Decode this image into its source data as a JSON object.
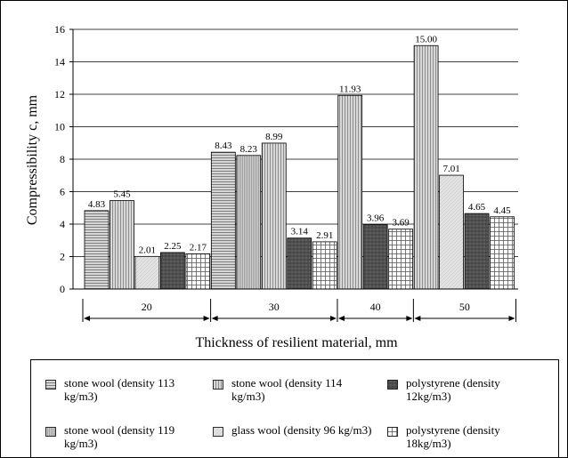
{
  "chart_data": {
    "type": "bar",
    "title": "",
    "xlabel": "Thickness of resilient material, mm",
    "ylabel": "Compressibility c, mm",
    "ylim": [
      0,
      16
    ],
    "yticks": [
      "0",
      "2",
      "4",
      "6",
      "8",
      "10",
      "12",
      "14",
      "16"
    ],
    "grid": "horizontal",
    "legend_position": "bottom",
    "groups": [
      {
        "label": "20",
        "bars": [
          {
            "series": "stone wool (density 113 kg/m3)",
            "value": 4.83,
            "label": "4.83"
          },
          {
            "series": "stone wool (density 114 kg/m3)",
            "value": 5.45,
            "label": "5.45"
          },
          {
            "series": "glass wool (density 96 kg/m3)",
            "value": 2.01,
            "label": "2.01"
          },
          {
            "series": "polystyrene (density 12kg/m3)",
            "value": 2.25,
            "label": "2.25"
          },
          {
            "series": "polystyrene (density 18kg/m3)",
            "value": 2.17,
            "label": "2.17"
          }
        ]
      },
      {
        "label": "30",
        "bars": [
          {
            "series": "stone wool (density 113 kg/m3)",
            "value": 8.43,
            "label": "8.43"
          },
          {
            "series": "stone wool (density 119 kg/m3)",
            "value": 8.23,
            "label": "8.23"
          },
          {
            "series": "stone wool (density 114 kg/m3)",
            "value": 8.99,
            "label": "8.99"
          },
          {
            "series": "polystyrene (density 12kg/m3)",
            "value": 3.14,
            "label": "3.14"
          },
          {
            "series": "polystyrene (density 18kg/m3)",
            "value": 2.91,
            "label": "2.91"
          }
        ]
      },
      {
        "label": "40",
        "bars": [
          {
            "series": "stone wool (density 114 kg/m3)",
            "value": 11.93,
            "label": "11.93"
          },
          {
            "series": "polystyrene (density 12kg/m3)",
            "value": 3.96,
            "label": "3.96"
          },
          {
            "series": "polystyrene (density 18kg/m3)",
            "value": 3.69,
            "label": "3.69"
          }
        ]
      },
      {
        "label": "50",
        "bars": [
          {
            "series": "stone wool (density 114 kg/m3)",
            "value": 15.0,
            "label": "15.00"
          },
          {
            "series": "glass wool (density 96 kg/m3)",
            "value": 7.01,
            "label": "7.01"
          },
          {
            "series": "polystyrene (density 12kg/m3)",
            "value": 4.65,
            "label": "4.65"
          },
          {
            "series": "polystyrene (density 18kg/m3)",
            "value": 4.45,
            "label": "4.45"
          }
        ]
      }
    ],
    "legend": [
      {
        "name": "stone wool (density 113 kg/m3)",
        "pattern": "hlines",
        "fill": "#d0d0d0"
      },
      {
        "name": "stone wool (density 114 kg/m3)",
        "pattern": "vlines",
        "fill": "#cfcfcf"
      },
      {
        "name": "polystyrene (density 12kg/m3)",
        "pattern": "dark",
        "fill": "#555555"
      },
      {
        "name": "stone wool (density 119 kg/m3)",
        "pattern": "vlines-dense",
        "fill": "#c4c4c4"
      },
      {
        "name": "glass wool (density 96 kg/m3)",
        "pattern": "light",
        "fill": "#e2e2e2"
      },
      {
        "name": "polystyrene (density 18kg/m3)",
        "pattern": "grid",
        "fill": "#ffffff"
      }
    ]
  }
}
